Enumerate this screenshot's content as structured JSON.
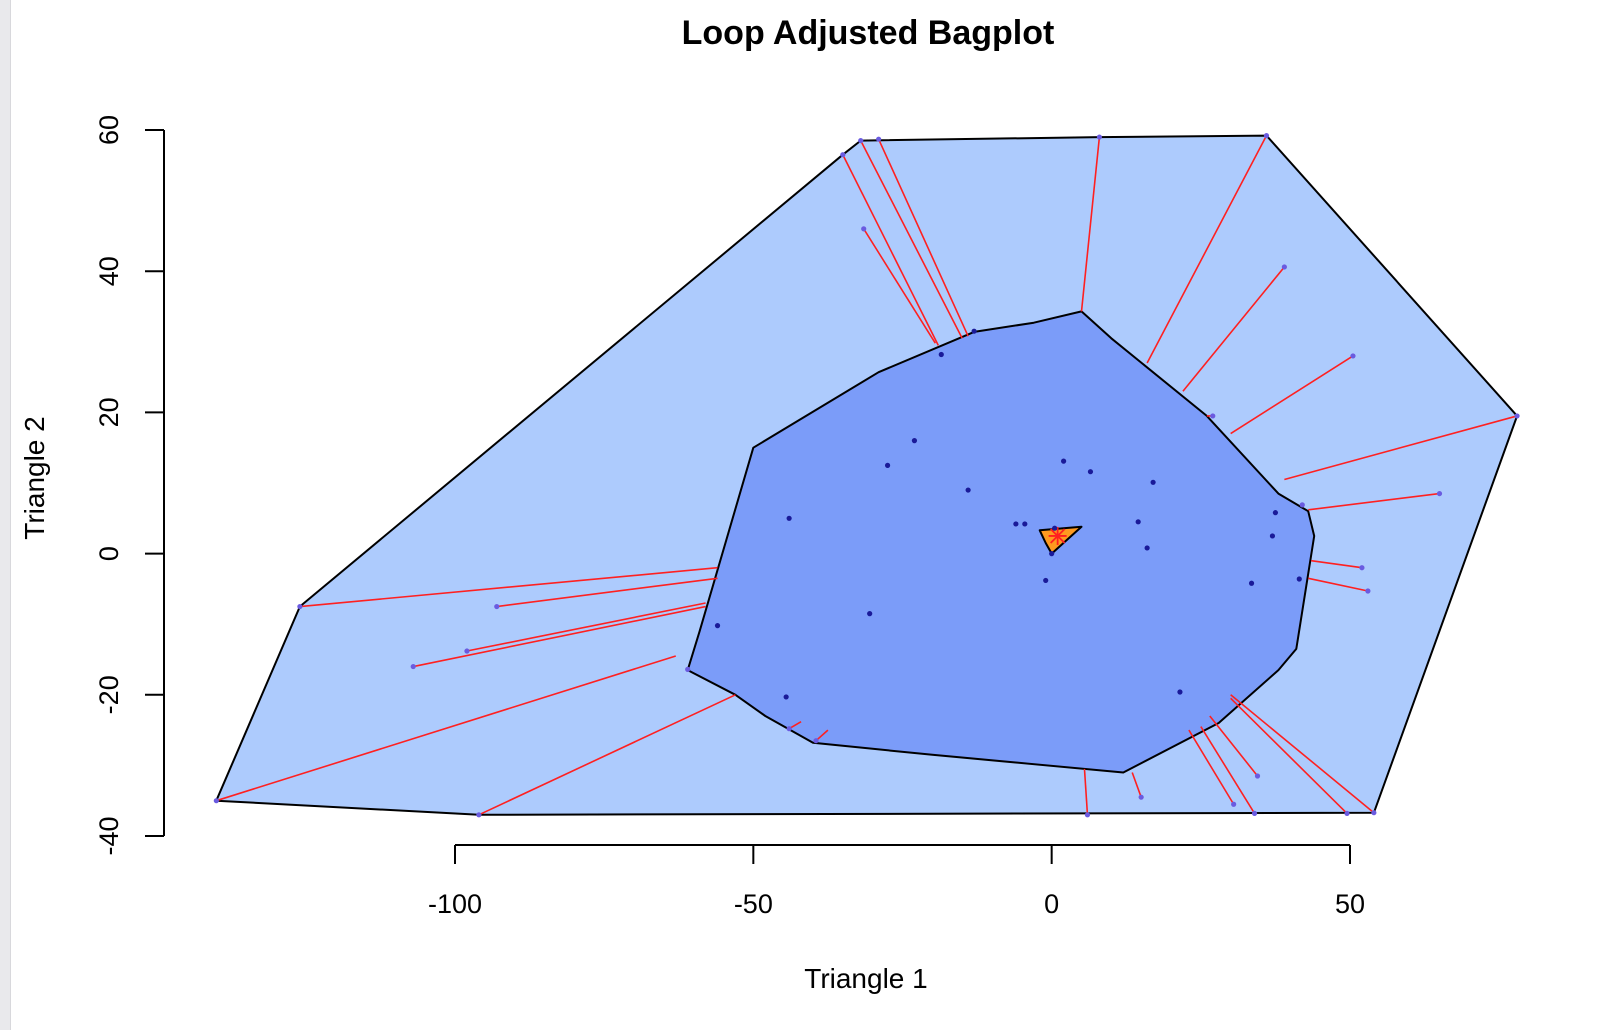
{
  "chart_data": {
    "type": "scatter",
    "title": "Loop Adjusted Bagplot",
    "xlabel": "Triangle 1",
    "ylabel": "Triangle 2",
    "xlim": [
      -100,
      50
    ],
    "ylim": [
      -40,
      60
    ],
    "x_ticks": [
      -100,
      -50,
      0,
      50
    ],
    "y_ticks": [
      -40,
      -20,
      0,
      20,
      40,
      60
    ],
    "colors": {
      "loop": "#adcbfd",
      "bag": "#7b9cf9",
      "center": "#ff9a1f",
      "whisker": "#ff2020",
      "point": "#1a1a99",
      "outline": "#000000"
    },
    "loop_hull": [
      [
        -32,
        58.5
      ],
      [
        8,
        59
      ],
      [
        36,
        59.2
      ],
      [
        78,
        19.5
      ],
      [
        54,
        -36.7
      ],
      [
        -96,
        -37
      ],
      [
        -140,
        -35
      ],
      [
        -126,
        -7.5
      ],
      [
        -35,
        56.5
      ]
    ],
    "bag_hull": [
      [
        5,
        34.3
      ],
      [
        10,
        30.5
      ],
      [
        26,
        19.5
      ],
      [
        38,
        8.5
      ],
      [
        43,
        6
      ],
      [
        44,
        2.5
      ],
      [
        41,
        -13.5
      ],
      [
        38,
        -16.5
      ],
      [
        28,
        -24
      ],
      [
        12,
        -31
      ],
      [
        -20,
        -28.5
      ],
      [
        -40,
        -26.8
      ],
      [
        -48,
        -23
      ],
      [
        -53,
        -20
      ],
      [
        -61,
        -16.5
      ],
      [
        -59,
        -11
      ],
      [
        -50,
        15
      ],
      [
        -29,
        25.7
      ],
      [
        -13,
        31.4
      ],
      [
        -3,
        32.7
      ]
    ],
    "center_poly": [
      [
        -2,
        3.3
      ],
      [
        5,
        3.8
      ],
      [
        0,
        0
      ],
      [
        -1,
        1.5
      ]
    ],
    "center": [
      1,
      2.5
    ],
    "bag_points": [
      [
        -18.5,
        28.2
      ],
      [
        -13,
        31.5
      ],
      [
        -23,
        16
      ],
      [
        -27.5,
        12.5
      ],
      [
        -14,
        9
      ],
      [
        -44,
        5
      ],
      [
        -30.5,
        -8.5
      ],
      [
        -56,
        -10.2
      ],
      [
        -44.5,
        -20.3
      ],
      [
        -6,
        4.2
      ],
      [
        -4.5,
        4.2
      ],
      [
        0.5,
        3.6
      ],
      [
        2,
        13.1
      ],
      [
        6.5,
        11.6
      ],
      [
        17,
        10.1
      ],
      [
        14.5,
        4.5
      ],
      [
        16,
        0.8
      ],
      [
        -1,
        -3.8
      ],
      [
        33.5,
        -4.2
      ],
      [
        37,
        2.5
      ],
      [
        37.5,
        5.8
      ],
      [
        41.5,
        -3.6
      ],
      [
        21.5,
        -19.6
      ],
      [
        0,
        0
      ]
    ],
    "outliers": [
      {
        "p": [
          -35,
          56.5
        ],
        "b": [
          -19,
          29.5
        ]
      },
      {
        "p": [
          -32,
          58.5
        ],
        "b": [
          -15,
          30.5
        ]
      },
      {
        "p": [
          -29,
          58.7
        ],
        "b": [
          -14,
          30.8
        ]
      },
      {
        "p": [
          -31.5,
          46
        ],
        "b": [
          -19.5,
          29.8
        ]
      },
      {
        "p": [
          8,
          59
        ],
        "b": [
          5,
          34.3
        ]
      },
      {
        "p": [
          36,
          59.2
        ],
        "b": [
          16,
          27
        ]
      },
      {
        "p": [
          39,
          40.6
        ],
        "b": [
          22,
          23
        ]
      },
      {
        "p": [
          50.5,
          28
        ],
        "b": [
          30,
          17
        ]
      },
      {
        "p": [
          27,
          19.5
        ],
        "b": [
          26,
          19.5
        ]
      },
      {
        "p": [
          78,
          19.5
        ],
        "b": [
          39,
          10.5
        ]
      },
      {
        "p": [
          65,
          8.5
        ],
        "b": [
          43,
          6.2
        ]
      },
      {
        "p": [
          42,
          6.9
        ],
        "b": [
          42,
          6.9
        ]
      },
      {
        "p": [
          52,
          -2
        ],
        "b": [
          43.5,
          -1
        ]
      },
      {
        "p": [
          53,
          -5.3
        ],
        "b": [
          43,
          -3.5
        ]
      },
      {
        "p": [
          -126,
          -7.5
        ],
        "b": [
          -56,
          -2
        ]
      },
      {
        "p": [
          -93,
          -7.5
        ],
        "b": [
          -56,
          -3.5
        ]
      },
      {
        "p": [
          -98,
          -13.8
        ],
        "b": [
          -58,
          -7
        ]
      },
      {
        "p": [
          -107,
          -16
        ],
        "b": [
          -58,
          -7.5
        ]
      },
      {
        "p": [
          -61,
          -16.4
        ],
        "b": [
          -61,
          -16.4
        ]
      },
      {
        "p": [
          -140,
          -35
        ],
        "b": [
          -63,
          -14.5
        ]
      },
      {
        "p": [
          -96,
          -37
        ],
        "b": [
          -53,
          -20
        ]
      },
      {
        "p": [
          -44,
          -24.8
        ],
        "b": [
          -42,
          -23.8
        ]
      },
      {
        "p": [
          -39.5,
          -26.5
        ],
        "b": [
          -37.5,
          -25
        ]
      },
      {
        "p": [
          6,
          -37
        ],
        "b": [
          5.5,
          -30.5
        ]
      },
      {
        "p": [
          15,
          -34.5
        ],
        "b": [
          13.5,
          -31
        ]
      },
      {
        "p": [
          30.5,
          -35.5
        ],
        "b": [
          23,
          -25
        ]
      },
      {
        "p": [
          34,
          -36.8
        ],
        "b": [
          25,
          -24.5
        ]
      },
      {
        "p": [
          34.5,
          -31.5
        ],
        "b": [
          26.5,
          -23
        ]
      },
      {
        "p": [
          49.5,
          -36.8
        ],
        "b": [
          30,
          -20.5
        ]
      },
      {
        "p": [
          54,
          -36.7
        ],
        "b": [
          30,
          -20
        ]
      }
    ]
  }
}
